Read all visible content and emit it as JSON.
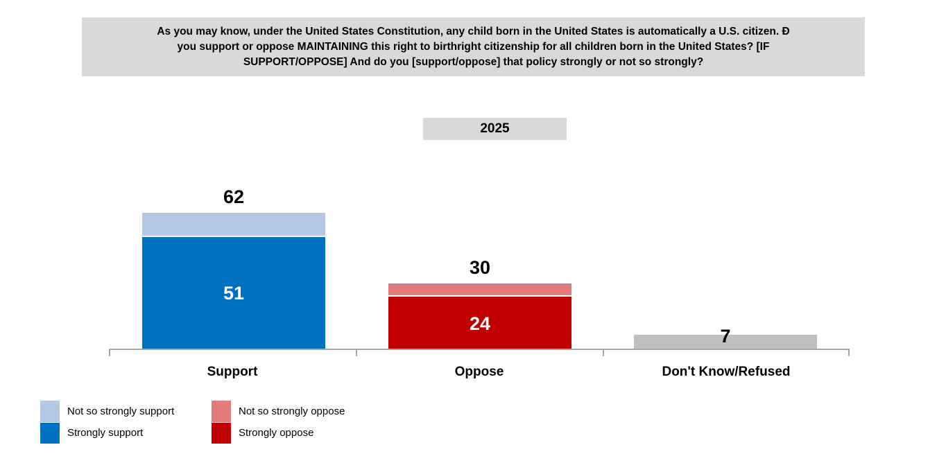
{
  "question_box": {
    "lines": [
      "As you may know, under the United States Constitution, any child born in the United States is automatically a U.S. citizen. Ð",
      "you support or oppose MAINTAINING this right to birthright citizenship for all children born in the United States? [IF",
      "SUPPORT/OPPOSE] And do you [support/oppose] that policy strongly or not so strongly?"
    ],
    "background": "#d9d9d9"
  },
  "year_label": {
    "text": "2025",
    "background": "#d9d9d9"
  },
  "chart_data": {
    "type": "bar",
    "stacked": true,
    "title": "2025",
    "xlabel": "",
    "ylabel": "",
    "ylim": [
      0,
      70
    ],
    "grid": false,
    "legend_position": "bottom-left",
    "categories": [
      "Support",
      "Oppose",
      "Don't Know/Refused"
    ],
    "totals": [
      62,
      30,
      7
    ],
    "series": [
      {
        "name": "Strongly support",
        "color": "#0070c0",
        "values": [
          51,
          0,
          0
        ]
      },
      {
        "name": "Not so strongly support",
        "color": "#b4c7e7",
        "values": [
          11,
          0,
          0
        ]
      },
      {
        "name": "Strongly oppose",
        "color": "#c00000",
        "values": [
          0,
          24,
          0
        ]
      },
      {
        "name": "Not so strongly oppose",
        "color": "#e07c7c",
        "values": [
          0,
          6,
          0
        ]
      },
      {
        "name": "Don't Know/Refused",
        "color": "#bfbfbf",
        "values": [
          0,
          0,
          7
        ]
      }
    ],
    "bars": [
      {
        "category": "Support",
        "total": 62,
        "total_label": "62",
        "total_label_inside": false,
        "segments": [
          {
            "name": "Strongly support",
            "value": 51,
            "color": "#0070c0",
            "label": "51",
            "label_color": "#ffffff"
          },
          {
            "name": "Not so strongly support",
            "value": 11,
            "color": "#b4c7e7",
            "label": "",
            "label_color": ""
          }
        ]
      },
      {
        "category": "Oppose",
        "total": 30,
        "total_label": "30",
        "total_label_inside": false,
        "segments": [
          {
            "name": "Strongly oppose",
            "value": 24,
            "color": "#c00000",
            "label": "24",
            "label_color": "#ffffff"
          },
          {
            "name": "Not so strongly oppose",
            "value": 6,
            "color": "#e07c7c",
            "label": "",
            "label_color": ""
          }
        ]
      },
      {
        "category": "Don't Know/Refused",
        "total": 7,
        "total_label": "7",
        "total_label_inside": true,
        "segments": [
          {
            "name": "Don't Know/Refused",
            "value": 7,
            "color": "#bfbfbf",
            "label": "",
            "label_color": ""
          }
        ]
      }
    ]
  },
  "legend": {
    "columns": [
      {
        "items": [
          {
            "label": "Not so strongly support",
            "color": "#b4c7e7"
          },
          {
            "label": "Strongly support",
            "color": "#0070c0"
          }
        ]
      },
      {
        "items": [
          {
            "label": "Not so strongly oppose",
            "color": "#e07c7c"
          },
          {
            "label": "Strongly oppose",
            "color": "#c00000"
          }
        ]
      }
    ]
  },
  "colors": {
    "strongly_support": "#0070c0",
    "not_so_strongly_support": "#b4c7e7",
    "strongly_oppose": "#c00000",
    "not_so_strongly_oppose": "#e07c7c",
    "dont_know": "#bfbfbf",
    "box_background": "#d9d9d9",
    "axis": "#a6a6a6",
    "text": "#000000"
  }
}
